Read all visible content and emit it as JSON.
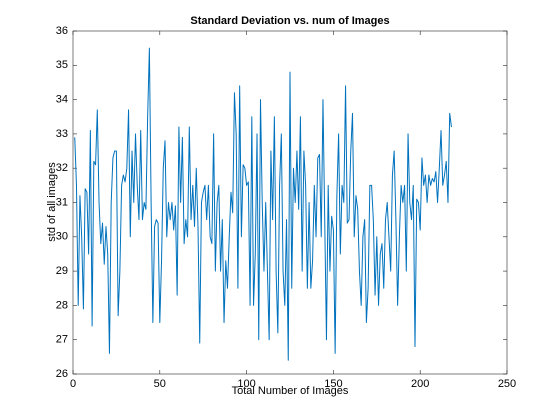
{
  "chart_data": {
    "type": "line",
    "title": "Standard Deviation vs. num of Images",
    "xlabel": "Total Number of Images",
    "ylabel": "std of all images",
    "color": "#0072bd",
    "xlim": [
      0,
      250
    ],
    "xticks": [
      0,
      50,
      100,
      150,
      200,
      250
    ],
    "ylim": [
      26,
      36
    ],
    "yticks": [
      26,
      27,
      28,
      29,
      30,
      31,
      32,
      33,
      34,
      35,
      36
    ],
    "grid": false,
    "x": [
      1,
      2,
      3,
      4,
      5,
      6,
      7,
      8,
      9,
      10,
      11,
      12,
      13,
      14,
      15,
      16,
      17,
      18,
      19,
      20,
      21,
      22,
      23,
      24,
      25,
      26,
      27,
      28,
      29,
      30,
      31,
      32,
      33,
      34,
      35,
      36,
      37,
      38,
      39,
      40,
      41,
      42,
      43,
      44,
      45,
      46,
      47,
      48,
      49,
      50,
      51,
      52,
      53,
      54,
      55,
      56,
      57,
      58,
      59,
      60,
      61,
      62,
      63,
      64,
      65,
      66,
      67,
      68,
      69,
      70,
      71,
      72,
      73,
      74,
      75,
      76,
      77,
      78,
      79,
      80,
      81,
      82,
      83,
      84,
      85,
      86,
      87,
      88,
      89,
      90,
      91,
      92,
      93,
      94,
      95,
      96,
      97,
      98,
      99,
      100,
      101,
      102,
      103,
      104,
      105,
      106,
      107,
      108,
      109,
      110,
      111,
      112,
      113,
      114,
      115,
      116,
      117,
      118,
      119,
      120,
      121,
      122,
      123,
      124,
      125,
      126,
      127,
      128,
      129,
      130,
      131,
      132,
      133,
      134,
      135,
      136,
      137,
      138,
      139,
      140,
      141,
      142,
      143,
      144,
      145,
      146,
      147,
      148,
      149,
      150,
      151,
      152,
      153,
      154,
      155,
      156,
      157,
      158,
      159,
      160,
      161,
      162,
      163,
      164,
      165,
      166,
      167,
      168,
      169,
      170,
      171,
      172,
      173,
      174,
      175,
      176,
      177,
      178,
      179,
      180,
      181,
      182,
      183,
      184,
      185,
      186,
      187,
      188,
      189,
      190,
      191,
      192,
      193,
      194,
      195,
      196,
      197,
      198,
      199,
      200,
      201,
      202,
      203,
      204,
      205,
      206,
      207,
      208,
      209,
      210,
      211,
      212,
      213,
      214,
      215,
      216,
      217,
      218
    ],
    "values": [
      32.9,
      31.5,
      28.0,
      31.2,
      30.0,
      27.9,
      31.4,
      31.3,
      29.5,
      33.1,
      27.4,
      32.2,
      32.1,
      33.7,
      31.0,
      29.8,
      30.4,
      29.2,
      30.3,
      29.5,
      26.6,
      31.0,
      32.3,
      32.5,
      32.5,
      27.7,
      29.0,
      31.5,
      31.8,
      31.6,
      32.0,
      33.7,
      30.0,
      32.5,
      31.0,
      33.0,
      31.5,
      30.5,
      33.1,
      30.5,
      31.0,
      30.8,
      33.5,
      35.5,
      31.0,
      27.5,
      30.3,
      30.5,
      30.4,
      27.5,
      29.3,
      32.0,
      32.8,
      30.0,
      31.0,
      30.5,
      31.0,
      30.2,
      30.9,
      28.3,
      33.2,
      31.0,
      32.9,
      29.8,
      30.5,
      30.0,
      33.2,
      30.5,
      31.5,
      30.3,
      32.0,
      30.3,
      26.9,
      31.0,
      31.3,
      31.5,
      30.5,
      31.5,
      30.0,
      29.8,
      33.0,
      29.0,
      31.0,
      31.5,
      29.0,
      30.5,
      27.5,
      29.3,
      28.5,
      30.0,
      31.3,
      30.7,
      34.2,
      33.0,
      28.5,
      34.4,
      30.0,
      32.1,
      32.0,
      31.5,
      31.6,
      28.0,
      33.5,
      28.0,
      29.5,
      33.0,
      27.0,
      34.0,
      31.0,
      29.0,
      31.0,
      29.0,
      27.0,
      32.5,
      30.5,
      33.5,
      29.0,
      27.2,
      31.5,
      33.0,
      29.0,
      28.0,
      30.5,
      26.4,
      34.8,
      28.5,
      32.0,
      31.0,
      32.5,
      30.8,
      33.5,
      29.0,
      32.5,
      31.5,
      28.5,
      31.0,
      28.5,
      29.3,
      31.5,
      30.0,
      32.3,
      32.4,
      30.0,
      34.0,
      30.5,
      27.0,
      31.5,
      29.0,
      30.6,
      30.2,
      26.6,
      31.2,
      33.0,
      29.5,
      31.5,
      31.0,
      34.4,
      30.4,
      30.5,
      32.5,
      33.6,
      30.0,
      31.2,
      30.8,
      29.0,
      28.0,
      30.0,
      30.5,
      27.5,
      28.5,
      31.5,
      31.5,
      30.5,
      28.3,
      30.0,
      28.0,
      29.5,
      29.8,
      28.5,
      30.5,
      31.0,
      30.0,
      29.0,
      31.8,
      32.5,
      30.5,
      28.0,
      30.0,
      31.5,
      31.0,
      31.5,
      29.0,
      33.0,
      31.0,
      30.5,
      31.5,
      26.8,
      31.1,
      31.0,
      30.2,
      32.3,
      31.5,
      31.8,
      31.0,
      31.8,
      31.5,
      31.7,
      31.6,
      31.9,
      31.0,
      32.0,
      33.1,
      31.5,
      31.8,
      32.2,
      31.0,
      33.6,
      33.2
    ]
  }
}
